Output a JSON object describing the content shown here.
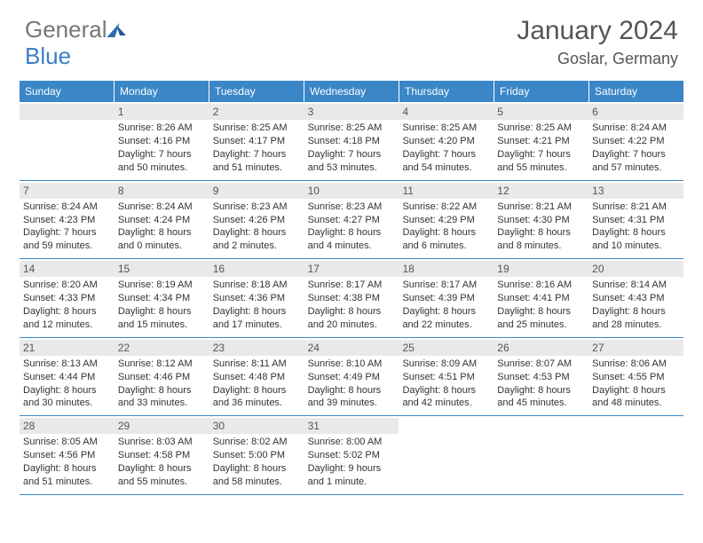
{
  "brand": {
    "part1": "General",
    "part2": "Blue"
  },
  "title": "January 2024",
  "location": "Goslar, Germany",
  "colors": {
    "header_bg": "#3b86c7",
    "header_fg": "#ffffff",
    "daynum_bg": "#e9e9e9",
    "rule": "#3b86c7",
    "text": "#333333"
  },
  "weekdays": [
    "Sunday",
    "Monday",
    "Tuesday",
    "Wednesday",
    "Thursday",
    "Friday",
    "Saturday"
  ],
  "weeks": [
    [
      null,
      {
        "n": "1",
        "sr": "Sunrise: 8:26 AM",
        "ss": "Sunset: 4:16 PM",
        "d1": "Daylight: 7 hours",
        "d2": "and 50 minutes."
      },
      {
        "n": "2",
        "sr": "Sunrise: 8:25 AM",
        "ss": "Sunset: 4:17 PM",
        "d1": "Daylight: 7 hours",
        "d2": "and 51 minutes."
      },
      {
        "n": "3",
        "sr": "Sunrise: 8:25 AM",
        "ss": "Sunset: 4:18 PM",
        "d1": "Daylight: 7 hours",
        "d2": "and 53 minutes."
      },
      {
        "n": "4",
        "sr": "Sunrise: 8:25 AM",
        "ss": "Sunset: 4:20 PM",
        "d1": "Daylight: 7 hours",
        "d2": "and 54 minutes."
      },
      {
        "n": "5",
        "sr": "Sunrise: 8:25 AM",
        "ss": "Sunset: 4:21 PM",
        "d1": "Daylight: 7 hours",
        "d2": "and 55 minutes."
      },
      {
        "n": "6",
        "sr": "Sunrise: 8:24 AM",
        "ss": "Sunset: 4:22 PM",
        "d1": "Daylight: 7 hours",
        "d2": "and 57 minutes."
      }
    ],
    [
      {
        "n": "7",
        "sr": "Sunrise: 8:24 AM",
        "ss": "Sunset: 4:23 PM",
        "d1": "Daylight: 7 hours",
        "d2": "and 59 minutes."
      },
      {
        "n": "8",
        "sr": "Sunrise: 8:24 AM",
        "ss": "Sunset: 4:24 PM",
        "d1": "Daylight: 8 hours",
        "d2": "and 0 minutes."
      },
      {
        "n": "9",
        "sr": "Sunrise: 8:23 AM",
        "ss": "Sunset: 4:26 PM",
        "d1": "Daylight: 8 hours",
        "d2": "and 2 minutes."
      },
      {
        "n": "10",
        "sr": "Sunrise: 8:23 AM",
        "ss": "Sunset: 4:27 PM",
        "d1": "Daylight: 8 hours",
        "d2": "and 4 minutes."
      },
      {
        "n": "11",
        "sr": "Sunrise: 8:22 AM",
        "ss": "Sunset: 4:29 PM",
        "d1": "Daylight: 8 hours",
        "d2": "and 6 minutes."
      },
      {
        "n": "12",
        "sr": "Sunrise: 8:21 AM",
        "ss": "Sunset: 4:30 PM",
        "d1": "Daylight: 8 hours",
        "d2": "and 8 minutes."
      },
      {
        "n": "13",
        "sr": "Sunrise: 8:21 AM",
        "ss": "Sunset: 4:31 PM",
        "d1": "Daylight: 8 hours",
        "d2": "and 10 minutes."
      }
    ],
    [
      {
        "n": "14",
        "sr": "Sunrise: 8:20 AM",
        "ss": "Sunset: 4:33 PM",
        "d1": "Daylight: 8 hours",
        "d2": "and 12 minutes."
      },
      {
        "n": "15",
        "sr": "Sunrise: 8:19 AM",
        "ss": "Sunset: 4:34 PM",
        "d1": "Daylight: 8 hours",
        "d2": "and 15 minutes."
      },
      {
        "n": "16",
        "sr": "Sunrise: 8:18 AM",
        "ss": "Sunset: 4:36 PM",
        "d1": "Daylight: 8 hours",
        "d2": "and 17 minutes."
      },
      {
        "n": "17",
        "sr": "Sunrise: 8:17 AM",
        "ss": "Sunset: 4:38 PM",
        "d1": "Daylight: 8 hours",
        "d2": "and 20 minutes."
      },
      {
        "n": "18",
        "sr": "Sunrise: 8:17 AM",
        "ss": "Sunset: 4:39 PM",
        "d1": "Daylight: 8 hours",
        "d2": "and 22 minutes."
      },
      {
        "n": "19",
        "sr": "Sunrise: 8:16 AM",
        "ss": "Sunset: 4:41 PM",
        "d1": "Daylight: 8 hours",
        "d2": "and 25 minutes."
      },
      {
        "n": "20",
        "sr": "Sunrise: 8:14 AM",
        "ss": "Sunset: 4:43 PM",
        "d1": "Daylight: 8 hours",
        "d2": "and 28 minutes."
      }
    ],
    [
      {
        "n": "21",
        "sr": "Sunrise: 8:13 AM",
        "ss": "Sunset: 4:44 PM",
        "d1": "Daylight: 8 hours",
        "d2": "and 30 minutes."
      },
      {
        "n": "22",
        "sr": "Sunrise: 8:12 AM",
        "ss": "Sunset: 4:46 PM",
        "d1": "Daylight: 8 hours",
        "d2": "and 33 minutes."
      },
      {
        "n": "23",
        "sr": "Sunrise: 8:11 AM",
        "ss": "Sunset: 4:48 PM",
        "d1": "Daylight: 8 hours",
        "d2": "and 36 minutes."
      },
      {
        "n": "24",
        "sr": "Sunrise: 8:10 AM",
        "ss": "Sunset: 4:49 PM",
        "d1": "Daylight: 8 hours",
        "d2": "and 39 minutes."
      },
      {
        "n": "25",
        "sr": "Sunrise: 8:09 AM",
        "ss": "Sunset: 4:51 PM",
        "d1": "Daylight: 8 hours",
        "d2": "and 42 minutes."
      },
      {
        "n": "26",
        "sr": "Sunrise: 8:07 AM",
        "ss": "Sunset: 4:53 PM",
        "d1": "Daylight: 8 hours",
        "d2": "and 45 minutes."
      },
      {
        "n": "27",
        "sr": "Sunrise: 8:06 AM",
        "ss": "Sunset: 4:55 PM",
        "d1": "Daylight: 8 hours",
        "d2": "and 48 minutes."
      }
    ],
    [
      {
        "n": "28",
        "sr": "Sunrise: 8:05 AM",
        "ss": "Sunset: 4:56 PM",
        "d1": "Daylight: 8 hours",
        "d2": "and 51 minutes."
      },
      {
        "n": "29",
        "sr": "Sunrise: 8:03 AM",
        "ss": "Sunset: 4:58 PM",
        "d1": "Daylight: 8 hours",
        "d2": "and 55 minutes."
      },
      {
        "n": "30",
        "sr": "Sunrise: 8:02 AM",
        "ss": "Sunset: 5:00 PM",
        "d1": "Daylight: 8 hours",
        "d2": "and 58 minutes."
      },
      {
        "n": "31",
        "sr": "Sunrise: 8:00 AM",
        "ss": "Sunset: 5:02 PM",
        "d1": "Daylight: 9 hours",
        "d2": "and 1 minute."
      },
      null,
      null,
      null
    ]
  ]
}
